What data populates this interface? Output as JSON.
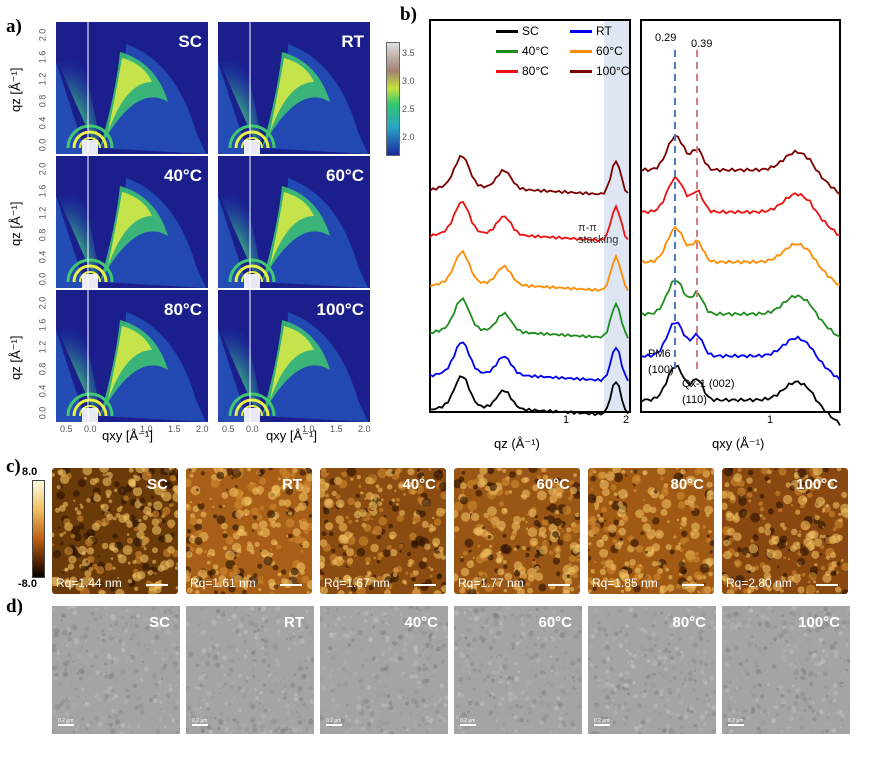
{
  "panel_labels": {
    "a": "a)",
    "b": "b)",
    "c": "c)",
    "d": "d)"
  },
  "giwaxs": {
    "images": [
      {
        "label": "SC"
      },
      {
        "label": "RT"
      },
      {
        "label": "40°C"
      },
      {
        "label": "60°C"
      },
      {
        "label": "80°C"
      },
      {
        "label": "100°C"
      }
    ],
    "y_ticks": [
      "2.0",
      "1.6",
      "1.2",
      "0.8",
      "0.4",
      "0.0"
    ],
    "x_ticks": [
      "0.5",
      "0.0",
      "1.0",
      "1.5",
      "2.0"
    ],
    "ylabel": "qz [Å⁻¹]",
    "xlabel": "qxy [Å⁻¹]",
    "colorbar_ticks": [
      "3.5",
      "3.0",
      "2.5",
      "2.0"
    ]
  },
  "chart_data": {
    "type": "line",
    "title": "",
    "panels": [
      {
        "xlabel": "qz (Å⁻¹)",
        "x_ticks": [
          "1",
          "2"
        ],
        "annotation": "π-π stacking"
      },
      {
        "xlabel": "qxy (Å⁻¹)",
        "x_ticks": [
          "1"
        ],
        "markers": [
          {
            "label": "0.29",
            "peak": "PM6 (100)"
          },
          {
            "label": "0.39",
            "peak": "Qx-1 (002)(110)"
          }
        ]
      }
    ],
    "series": [
      {
        "name": "SC",
        "color": "#000000"
      },
      {
        "name": "RT",
        "color": "#0000ee"
      },
      {
        "name": "40°C",
        "color": "#1e8c1e"
      },
      {
        "name": "60°C",
        "color": "#ff8c00"
      },
      {
        "name": "80°C",
        "color": "#ee1111"
      },
      {
        "name": "100°C",
        "color": "#7a0000"
      }
    ]
  },
  "afm": {
    "colorbar_max": "8.0",
    "colorbar_min": "-8.0",
    "images": [
      {
        "label": "SC",
        "rq": "Rq=1.44 nm"
      },
      {
        "label": "RT",
        "rq": "Rq=1.61 nm"
      },
      {
        "label": "40°C",
        "rq": "Rq=1.67 nm"
      },
      {
        "label": "60°C",
        "rq": "Rq=1.77 nm"
      },
      {
        "label": "80°C",
        "rq": "Rq=1.85 nm"
      },
      {
        "label": "100°C",
        "rq": "Rq=2.80 nm"
      }
    ]
  },
  "tem": {
    "images": [
      {
        "label": "SC",
        "scale": "0.2 μm"
      },
      {
        "label": "RT",
        "scale": "0.2 μm"
      },
      {
        "label": "40°C",
        "scale": "0.2 μm"
      },
      {
        "label": "60°C",
        "scale": "0.2 μm"
      },
      {
        "label": "80°C",
        "scale": "0.2 μm"
      },
      {
        "label": "100°C",
        "scale": "0.2 μm"
      }
    ]
  }
}
